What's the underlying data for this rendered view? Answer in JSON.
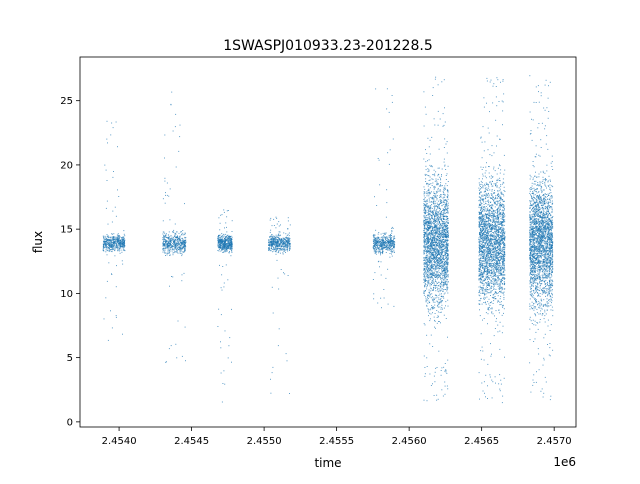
{
  "chart_data": {
    "type": "scatter",
    "title": "1SWASPJ010933.23-201228.5",
    "xlabel": "time",
    "ylabel": "flux",
    "x_offset_label": "1e6",
    "xlim": [
      2453730,
      2457150
    ],
    "ylim": [
      -0.4,
      28.4
    ],
    "x_ticks": [
      2453999.5,
      2454499.5,
      2454999.5,
      2455499.5,
      2455999.5,
      2456499.5,
      2456999.5
    ],
    "x_tick_labels": [
      "2.4540",
      "2.4545",
      "2.4550",
      "2.4555",
      "2.4560",
      "2.4565",
      "2.4570"
    ],
    "y_ticks": [
      0,
      5,
      10,
      15,
      20,
      25
    ],
    "y_tick_labels": [
      "0",
      "5",
      "10",
      "15",
      "20",
      "25"
    ],
    "grid": false,
    "point_color": "#1f77b4",
    "clusters": [
      {
        "x_start": 2453890,
        "x_end": 2454040,
        "y_center": 13.9,
        "y_spread": 0.45,
        "tail_min": 5.2,
        "tail_max": 23.9
      },
      {
        "x_start": 2454300,
        "x_end": 2454460,
        "y_center": 13.9,
        "y_spread": 0.55,
        "tail_min": 4.4,
        "tail_max": 25.8
      },
      {
        "x_start": 2454680,
        "x_end": 2454780,
        "y_center": 13.9,
        "y_spread": 0.45,
        "tail_min": 1.0,
        "tail_max": 16.5
      },
      {
        "x_start": 2455030,
        "x_end": 2455180,
        "y_center": 13.9,
        "y_spread": 0.45,
        "tail_min": 1.4,
        "tail_max": 16.0
      },
      {
        "x_start": 2455750,
        "x_end": 2455900,
        "y_center": 13.9,
        "y_spread": 0.55,
        "tail_min": 8.5,
        "tail_max": 26.6
      },
      {
        "x_start": 2456100,
        "x_end": 2456270,
        "y_center": 14.0,
        "y_spread": 3.3,
        "tail_min": 1.4,
        "tail_max": 27.0
      },
      {
        "x_start": 2456480,
        "x_end": 2456660,
        "y_center": 14.0,
        "y_spread": 3.3,
        "tail_min": 1.4,
        "tail_max": 27.0
      },
      {
        "x_start": 2456830,
        "x_end": 2456990,
        "y_center": 14.0,
        "y_spread": 3.3,
        "tail_min": 1.6,
        "tail_max": 27.0
      }
    ]
  }
}
